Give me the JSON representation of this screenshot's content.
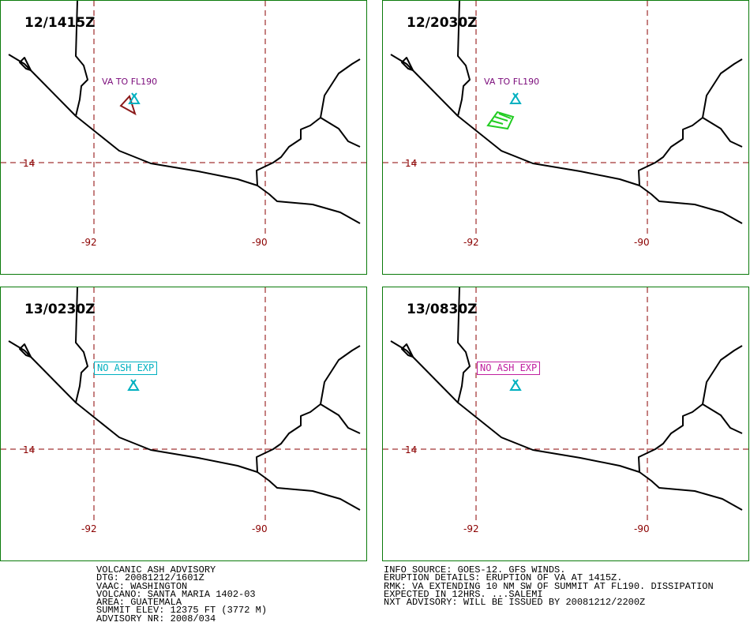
{
  "panels": [
    {
      "time": "12/1415Z",
      "label": "VA TO FL190",
      "label_color": "#7a0a7a",
      "volcano_color": "#00b0c0",
      "polygon_color": "#8b1a1a"
    },
    {
      "time": "12/2030Z",
      "label": "VA TO FL190",
      "label_color": "#7a0a7a",
      "volcano_color": "#00b0c0",
      "polygon_color": "#22cc22"
    },
    {
      "time": "13/0230Z",
      "label": "NO ASH EXP",
      "label_color": "#00b0c0",
      "volcano_color": "#00b0c0"
    },
    {
      "time": "13/0830Z",
      "label": "NO ASH EXP",
      "label_color": "#c020a0",
      "volcano_color": "#00b0c0"
    }
  ],
  "grid": {
    "lat_label": "14",
    "lon_labels": [
      "-92",
      "-90"
    ],
    "color": "#8b0000"
  },
  "advisory": {
    "title": "VOLCANIC ASH ADVISORY",
    "dtg": "DTG: 20081212/1601Z",
    "vaac": "VAAC: WASHINGTON",
    "volcano": "VOLCANO: SANTA MARIA 1402-03",
    "area": "AREA: GUATEMALA",
    "summit": "SUMMIT ELEV: 12375 FT (3772 M)",
    "nr": "ADVISORY NR: 2008/034"
  },
  "info": {
    "source": "INFO SOURCE: GOES-12. GFS WINDS.",
    "eruption": "ERUPTION DETAILS: ERUPTION OF VA AT 1415Z.",
    "rmk1": "RMK: VA EXTENDING 10 NM SW OF SUMMIT AT FL190. DISSIPATION",
    "rmk2": "EXPECTED IN 12HRS. ...SALEMI",
    "nxt": "NXT ADVISORY: WILL BE ISSUED BY 20081212/2200Z"
  }
}
